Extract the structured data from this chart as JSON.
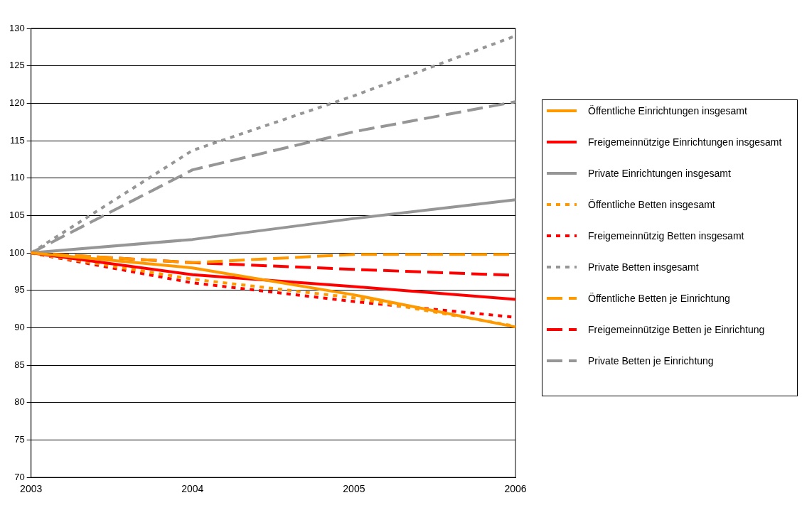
{
  "chart_data": {
    "type": "line",
    "categories": [
      "2003",
      "2004",
      "2005",
      "2006"
    ],
    "ylim": [
      70,
      130
    ],
    "yticks": [
      70,
      75,
      80,
      85,
      90,
      95,
      100,
      105,
      110,
      115,
      120,
      125,
      130
    ],
    "grid": "y",
    "legend": "right",
    "marker": "none",
    "series": [
      {
        "name": "Öffentliche Einrichtungen insgesamt",
        "color": "#ff9900",
        "line_style": "solid",
        "values": [
          100,
          98,
          94.4,
          90.1
        ]
      },
      {
        "name": "Freigemeinnützige Einrichtungen insgesamt",
        "color": "#ff0000",
        "line_style": "solid",
        "values": [
          100,
          97.1,
          95.5,
          93.8
        ]
      },
      {
        "name": "Private Einrichtungen insgesamt",
        "color": "#969696",
        "line_style": "solid",
        "values": [
          100,
          101.8,
          104.6,
          107.1
        ]
      },
      {
        "name": "Öffentliche Betten insgesamt",
        "color": "#ff9900",
        "line_style": "dotted",
        "values": [
          100,
          96.5,
          94,
          90.2
        ]
      },
      {
        "name": "Freigemeinnützig Betten insgesamt",
        "color": "#ff0000",
        "line_style": "dotted",
        "values": [
          100,
          96,
          93.5,
          91.4
        ]
      },
      {
        "name": "Private Betten insgesamt",
        "color": "#969696",
        "line_style": "dotted",
        "values": [
          100,
          113.7,
          121,
          129
        ]
      },
      {
        "name": "Öffentliche Betten je Einrichtung",
        "color": "#ff9900",
        "line_style": "dashed",
        "values": [
          100,
          98.7,
          99.8,
          99.8
        ]
      },
      {
        "name": "Freigemeinnützige Betten je Einrichtung",
        "color": "#ff0000",
        "line_style": "dashed",
        "values": [
          100,
          98.7,
          97.8,
          97
        ]
      },
      {
        "name": "Private Betten je Einrichtung",
        "color": "#969696",
        "line_style": "dashed",
        "values": [
          100,
          111.1,
          116.2,
          120.2
        ]
      }
    ]
  }
}
